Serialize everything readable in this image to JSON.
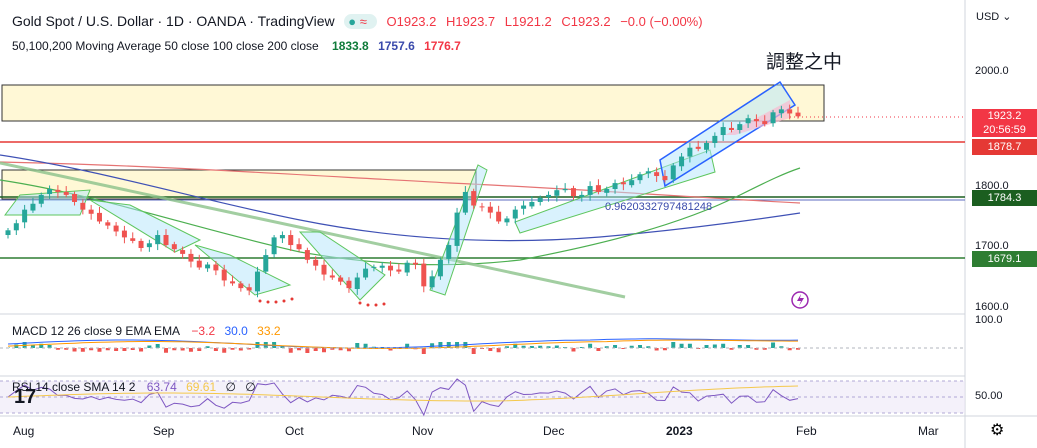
{
  "header": {
    "title": "Gold Spot / U.S. Dollar · 1D · OANDA · TradingView",
    "open": "O1923.2",
    "high": "H1923.7",
    "low": "L1921.2",
    "close": "C1923.2",
    "change": "−0.0 (−0.00%)",
    "ma_label": "50,100,200 Moving Average 50 close 100 close 200 close",
    "ma50": "1833.8",
    "ma100": "1757.6",
    "ma200": "1776.7",
    "currency": "USD",
    "currency_icon": "chevron-down-icon"
  },
  "annotation": "調整之中",
  "fib_label": "0.9620332797481248",
  "price_tags": {
    "last": "1923.2",
    "countdown": "20:56:59",
    "level1": "1878.7",
    "level2": "1784.3",
    "level3": "1679.1"
  },
  "y_ticks": [
    "2000.0",
    "1900.0",
    "1800.0",
    "1700.0",
    "1600.0"
  ],
  "x_ticks": [
    "Aug",
    "Sep",
    "Oct",
    "Nov",
    "Dec",
    "2023",
    "Feb",
    "Mar"
  ],
  "macd": {
    "label": "MACD 12 26 close 9 EMA EMA",
    "v1": "−3.2",
    "v2": "30.0",
    "v3": "33.2",
    "scale": "100.0"
  },
  "rsi": {
    "label": "RSI 14 close SMA 14 2",
    "v1": "63.74",
    "v2": "69.61",
    "v3": "∅",
    "v4": "∅",
    "scale": "50.00"
  },
  "colors": {
    "up": "#26a69a",
    "down": "#ef5350",
    "ma50": "#4caf50",
    "ma100": "#3f51b5",
    "ma200": "#e57373"
  },
  "chart_data": {
    "type": "candlestick",
    "title": "Gold Spot / U.S. Dollar · 1D · OANDA",
    "ylim": [
      1600,
      2000
    ],
    "x_range": [
      "Aug",
      "Mar"
    ],
    "closes": [
      1730,
      1742,
      1765,
      1775,
      1790,
      1800,
      1795,
      1790,
      1778,
      1765,
      1758,
      1745,
      1738,
      1728,
      1718,
      1712,
      1700,
      1708,
      1722,
      1705,
      1698,
      1690,
      1677,
      1667,
      1672,
      1662,
      1645,
      1640,
      1632,
      1628,
      1660,
      1688,
      1718,
      1722,
      1705,
      1698,
      1680,
      1670,
      1655,
      1650,
      1643,
      1632,
      1650,
      1665,
      1668,
      1670,
      1662,
      1660,
      1675,
      1672,
      1635,
      1652,
      1680,
      1705,
      1760,
      1795,
      1772,
      1770,
      1760,
      1745,
      1750,
      1765,
      1772,
      1778,
      1785,
      1790,
      1798,
      1800,
      1788,
      1790,
      1805,
      1795,
      1800,
      1810,
      1808,
      1815,
      1825,
      1830,
      1822,
      1815,
      1840,
      1855,
      1870,
      1868,
      1878,
      1890,
      1905,
      1900,
      1910,
      1920,
      1915,
      1910,
      1930,
      1935,
      1928,
      1923.2
    ],
    "horizontal_levels": [
      1878.7,
      1784.3,
      1679.1
    ],
    "moving_averages": {
      "MA50": 1833.8,
      "MA100": 1757.6,
      "MA200": 1776.7
    },
    "macd": {
      "macd": -3.2,
      "signal": 30.0,
      "histogram": 33.2
    },
    "rsi": {
      "rsi": 63.74,
      "sma": 69.61
    }
  }
}
